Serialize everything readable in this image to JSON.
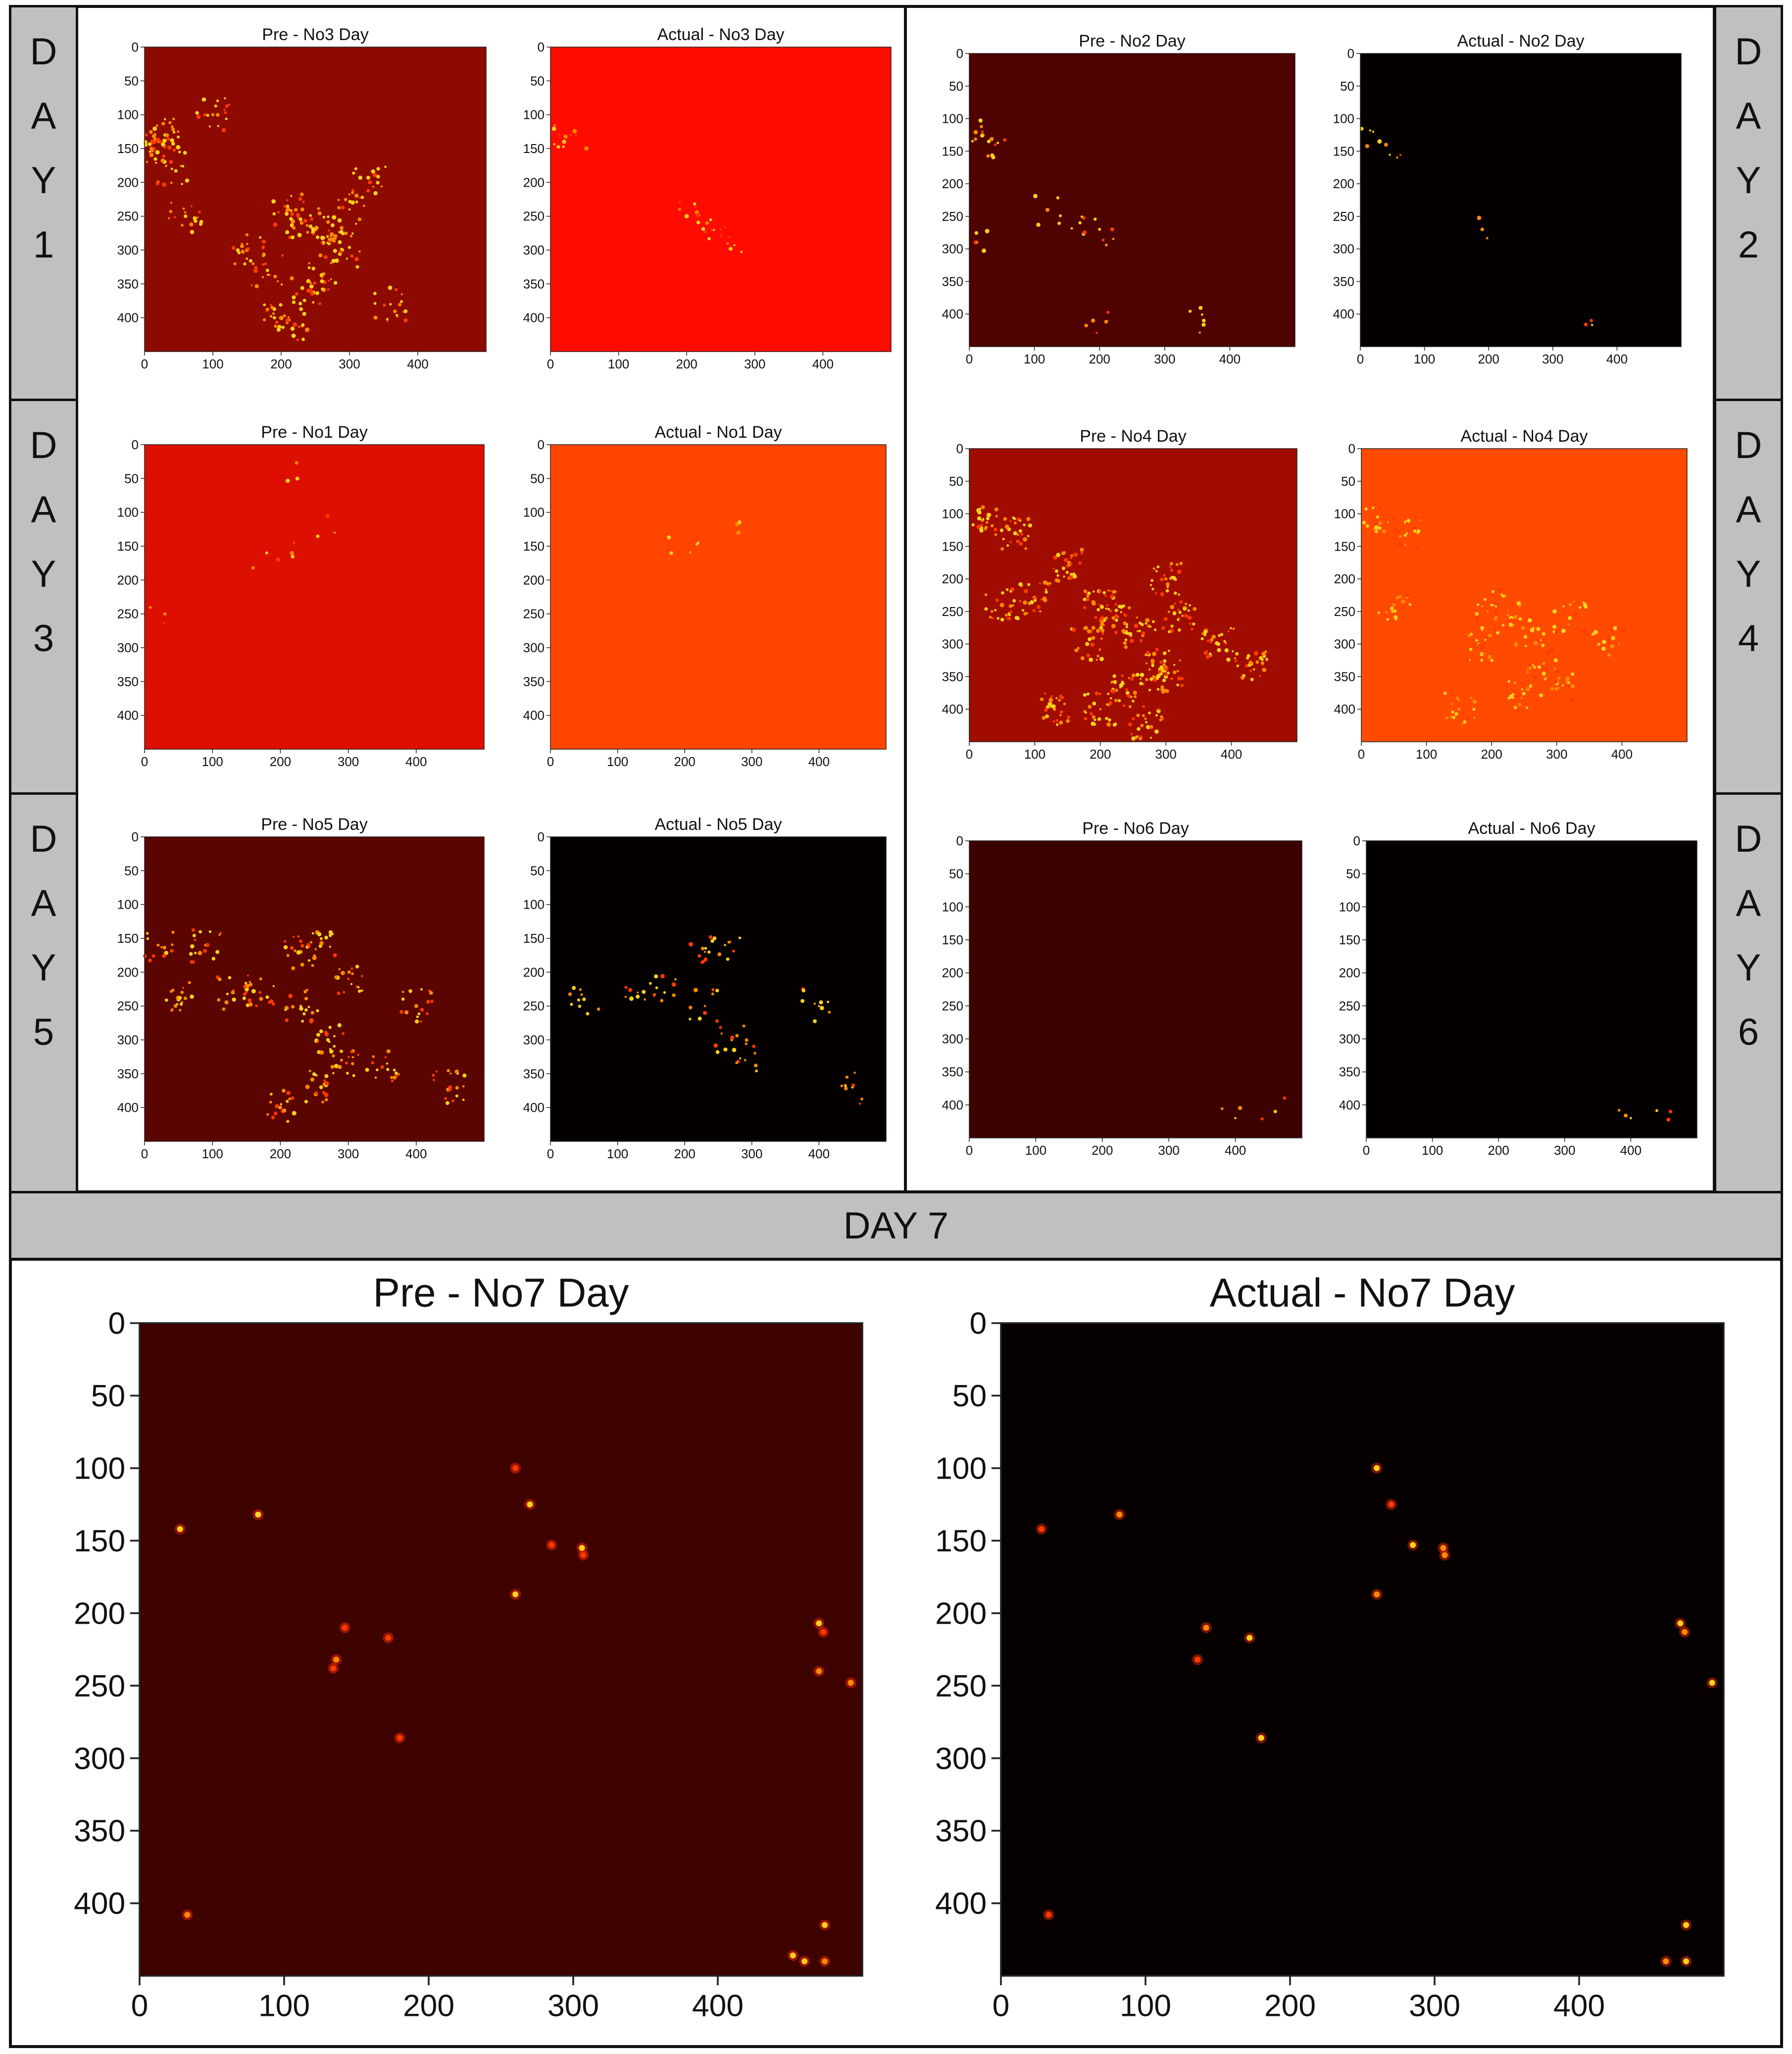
{
  "row_labels": [
    {
      "day": "DAY 1",
      "chars": [
        "D",
        "A",
        "Y",
        "1"
      ]
    },
    {
      "day": "DAY 2",
      "chars": [
        "D",
        "A",
        "Y",
        "2"
      ]
    },
    {
      "day": "DAY 3",
      "chars": [
        "D",
        "A",
        "Y",
        "3"
      ]
    },
    {
      "day": "DAY 4",
      "chars": [
        "D",
        "A",
        "Y",
        "4"
      ]
    },
    {
      "day": "DAY 5",
      "chars": [
        "D",
        "A",
        "Y",
        "5"
      ]
    },
    {
      "day": "DAY 6",
      "chars": [
        "D",
        "A",
        "Y",
        "6"
      ]
    }
  ],
  "day7_label": "DAY 7",
  "chart_data": [
    {
      "type": "heatmap",
      "title": "Pre - No3 Day",
      "x_ticks": [
        0,
        100,
        200,
        300,
        400
      ],
      "y_ticks": [
        0,
        50,
        100,
        150,
        200,
        250,
        300,
        350,
        400
      ],
      "xlim": [
        0,
        500
      ],
      "ylim": [
        450,
        0
      ],
      "colormap": "hot",
      "base_color": "#8c0a00",
      "hotspots": [
        [
          20,
          140
        ],
        [
          10,
          150
        ],
        [
          30,
          130
        ],
        [
          230,
          260
        ],
        [
          250,
          270
        ],
        [
          210,
          240
        ],
        [
          270,
          290
        ],
        [
          190,
          400
        ],
        [
          220,
          410
        ],
        [
          290,
          300
        ],
        [
          260,
          340
        ],
        [
          180,
          330
        ],
        [
          60,
          250
        ],
        [
          100,
          100
        ],
        [
          330,
          200
        ],
        [
          360,
          380
        ],
        [
          150,
          300
        ],
        [
          240,
          360
        ],
        [
          300,
          240
        ],
        [
          40,
          180
        ]
      ],
      "density": "high"
    },
    {
      "type": "heatmap",
      "title": "Actual - No3 Day",
      "x_ticks": [
        0,
        100,
        200,
        300,
        400
      ],
      "y_ticks": [
        0,
        50,
        100,
        150,
        200,
        250,
        300,
        350,
        400
      ],
      "xlim": [
        0,
        500
      ],
      "ylim": [
        450,
        0
      ],
      "colormap": "hot",
      "base_color": "#ff0b00",
      "hotspots": [
        [
          20,
          140
        ],
        [
          230,
          260
        ],
        [
          250,
          270
        ],
        [
          260,
          290
        ],
        [
          200,
          250
        ],
        [
          30,
          130
        ]
      ],
      "density": "low"
    },
    {
      "type": "heatmap",
      "title": "Pre - No2 Day",
      "x_ticks": [
        0,
        100,
        200,
        300,
        400
      ],
      "y_ticks": [
        0,
        50,
        100,
        150,
        200,
        250,
        300,
        350,
        400
      ],
      "xlim": [
        0,
        500
      ],
      "ylim": [
        450,
        0
      ],
      "colormap": "hot",
      "base_color": "#4e0300",
      "hotspots": [
        [
          20,
          120
        ],
        [
          30,
          135
        ],
        [
          40,
          140
        ],
        [
          200,
          270
        ],
        [
          170,
          260
        ],
        [
          360,
          410
        ],
        [
          120,
          240
        ],
        [
          190,
          410
        ],
        [
          10,
          290
        ]
      ],
      "density": "low"
    },
    {
      "type": "heatmap",
      "title": "Actual - No2 Day",
      "x_ticks": [
        0,
        100,
        200,
        300,
        400
      ],
      "y_ticks": [
        0,
        50,
        100,
        150,
        200,
        250,
        300,
        350,
        400
      ],
      "xlim": [
        0,
        500
      ],
      "ylim": [
        450,
        0
      ],
      "colormap": "hot",
      "base_color": "#050000",
      "hotspots": [
        [
          20,
          120
        ],
        [
          30,
          135
        ],
        [
          40,
          140
        ],
        [
          190,
          270
        ],
        [
          360,
          410
        ]
      ],
      "density": "very-low"
    },
    {
      "type": "heatmap",
      "title": "Pre - No1 Day",
      "x_ticks": [
        0,
        100,
        200,
        300,
        400
      ],
      "y_ticks": [
        0,
        50,
        100,
        150,
        200,
        250,
        300,
        350,
        400
      ],
      "xlim": [
        0,
        500
      ],
      "ylim": [
        450,
        0
      ],
      "colormap": "hot",
      "base_color": "#dd0f00",
      "hotspots": [
        [
          220,
          145
        ],
        [
          180,
          160
        ],
        [
          280,
          130
        ],
        [
          225,
          50
        ],
        [
          30,
          250
        ]
      ],
      "density": "very-low"
    },
    {
      "type": "heatmap",
      "title": "Actual - No1 Day",
      "x_ticks": [
        0,
        100,
        200,
        300,
        400
      ],
      "y_ticks": [
        0,
        50,
        100,
        150,
        200,
        250,
        300,
        350,
        400
      ],
      "xlim": [
        0,
        500
      ],
      "ylim": [
        450,
        0
      ],
      "colormap": "hot",
      "base_color": "#ff4500",
      "hotspots": [
        [
          220,
          145
        ],
        [
          180,
          160
        ],
        [
          280,
          130
        ]
      ],
      "density": "very-low"
    },
    {
      "type": "heatmap",
      "title": "Pre - No4 Day",
      "x_ticks": [
        0,
        100,
        200,
        300,
        400
      ],
      "y_ticks": [
        0,
        50,
        100,
        150,
        200,
        250,
        300,
        350,
        400
      ],
      "xlim": [
        0,
        500
      ],
      "ylim": [
        450,
        0
      ],
      "colormap": "hot",
      "base_color": "#a00c00",
      "hotspots": [
        [
          50,
          240
        ],
        [
          200,
          240
        ],
        [
          220,
          260
        ],
        [
          260,
          280
        ],
        [
          280,
          330
        ],
        [
          300,
          350
        ],
        [
          240,
          370
        ],
        [
          180,
          300
        ],
        [
          320,
          260
        ],
        [
          200,
          400
        ],
        [
          130,
          400
        ],
        [
          100,
          230
        ],
        [
          380,
          300
        ],
        [
          430,
          330
        ],
        [
          20,
          110
        ],
        [
          70,
          130
        ],
        [
          300,
          200
        ],
        [
          150,
          180
        ],
        [
          270,
          420
        ]
      ],
      "density": "very-high"
    },
    {
      "type": "heatmap",
      "title": "Actual - No4 Day",
      "x_ticks": [
        0,
        100,
        200,
        300,
        400
      ],
      "y_ticks": [
        0,
        50,
        100,
        150,
        200,
        250,
        300,
        350,
        400
      ],
      "xlim": [
        0,
        500
      ],
      "ylim": [
        450,
        0
      ],
      "colormap": "hot",
      "base_color": "#ff4a00",
      "hotspots": [
        [
          50,
          240
        ],
        [
          200,
          240
        ],
        [
          230,
          260
        ],
        [
          260,
          280
        ],
        [
          280,
          330
        ],
        [
          300,
          360
        ],
        [
          240,
          380
        ],
        [
          180,
          300
        ],
        [
          320,
          260
        ],
        [
          150,
          400
        ],
        [
          380,
          300
        ],
        [
          20,
          110
        ],
        [
          70,
          130
        ]
      ],
      "density": "high"
    },
    {
      "type": "heatmap",
      "title": "Pre - No5 Day",
      "x_ticks": [
        0,
        100,
        200,
        300,
        400
      ],
      "y_ticks": [
        0,
        50,
        100,
        150,
        200,
        250,
        300,
        350,
        400
      ],
      "xlim": [
        0,
        500
      ],
      "ylim": [
        450,
        0
      ],
      "colormap": "hot",
      "base_color": "#5a0500",
      "hotspots": [
        [
          50,
          240
        ],
        [
          130,
          230
        ],
        [
          170,
          230
        ],
        [
          230,
          170
        ],
        [
          260,
          160
        ],
        [
          230,
          250
        ],
        [
          270,
          300
        ],
        [
          290,
          330
        ],
        [
          260,
          370
        ],
        [
          400,
          250
        ],
        [
          450,
          370
        ],
        [
          20,
          160
        ],
        [
          90,
          160
        ],
        [
          350,
          340
        ],
        [
          200,
          400
        ],
        [
          300,
          210
        ]
      ],
      "density": "high"
    },
    {
      "type": "heatmap",
      "title": "Actual - No5 Day",
      "x_ticks": [
        0,
        100,
        200,
        300,
        400
      ],
      "y_ticks": [
        0,
        50,
        100,
        150,
        200,
        250,
        300,
        350,
        400
      ],
      "xlim": [
        0,
        500
      ],
      "ylim": [
        450,
        0
      ],
      "colormap": "hot",
      "base_color": "#050000",
      "hotspots": [
        [
          50,
          240
        ],
        [
          130,
          230
        ],
        [
          170,
          230
        ],
        [
          230,
          170
        ],
        [
          260,
          160
        ],
        [
          230,
          250
        ],
        [
          270,
          300
        ],
        [
          290,
          330
        ],
        [
          400,
          250
        ],
        [
          450,
          370
        ]
      ],
      "density": "medium"
    },
    {
      "type": "heatmap",
      "title": "Pre - No6 Day",
      "x_ticks": [
        0,
        100,
        200,
        300,
        400
      ],
      "y_ticks": [
        0,
        50,
        100,
        150,
        200,
        250,
        300,
        350,
        400
      ],
      "xlim": [
        0,
        500
      ],
      "ylim": [
        450,
        0
      ],
      "colormap": "hot",
      "base_color": "#3c0200",
      "hotspots": [
        [
          400,
          420
        ],
        [
          460,
          410
        ]
      ],
      "density": "very-low"
    },
    {
      "type": "heatmap",
      "title": "Actual - No6 Day",
      "x_ticks": [
        0,
        100,
        200,
        300,
        400
      ],
      "y_ticks": [
        0,
        50,
        100,
        150,
        200,
        250,
        300,
        350,
        400
      ],
      "xlim": [
        0,
        500
      ],
      "ylim": [
        450,
        0
      ],
      "colormap": "hot",
      "base_color": "#050000",
      "hotspots": [
        [
          400,
          420
        ],
        [
          460,
          410
        ]
      ],
      "density": "very-low"
    },
    {
      "type": "heatmap",
      "title": "Pre - No7 Day",
      "x_ticks": [
        0,
        100,
        200,
        300,
        400
      ],
      "y_ticks": [
        0,
        50,
        100,
        150,
        200,
        250,
        300,
        350,
        400
      ],
      "xlim": [
        0,
        500
      ],
      "ylim": [
        450,
        0
      ],
      "colormap": "hot",
      "base_color": "#3e0200",
      "hotspots": [
        [
          28,
          142
        ],
        [
          82,
          132
        ],
        [
          260,
          100
        ],
        [
          270,
          125
        ],
        [
          285,
          153
        ],
        [
          306,
          155
        ],
        [
          307,
          160
        ],
        [
          260,
          187
        ],
        [
          142,
          210
        ],
        [
          172,
          217
        ],
        [
          136,
          232
        ],
        [
          134,
          238
        ],
        [
          180,
          286
        ],
        [
          470,
          207
        ],
        [
          473,
          213
        ],
        [
          470,
          240
        ],
        [
          492,
          248
        ],
        [
          33,
          408
        ],
        [
          474,
          415
        ],
        [
          460,
          440
        ],
        [
          452,
          436
        ],
        [
          474,
          440
        ]
      ],
      "density": "low"
    },
    {
      "type": "heatmap",
      "title": "Actual - No7 Day",
      "x_ticks": [
        0,
        100,
        200,
        300,
        400
      ],
      "y_ticks": [
        0,
        50,
        100,
        150,
        200,
        250,
        300,
        350,
        400
      ],
      "xlim": [
        0,
        500
      ],
      "ylim": [
        450,
        0
      ],
      "colormap": "hot",
      "base_color": "#060000",
      "hotspots": [
        [
          28,
          142
        ],
        [
          82,
          132
        ],
        [
          260,
          100
        ],
        [
          270,
          125
        ],
        [
          285,
          153
        ],
        [
          306,
          155
        ],
        [
          307,
          160
        ],
        [
          260,
          187
        ],
        [
          142,
          210
        ],
        [
          172,
          217
        ],
        [
          136,
          232
        ],
        [
          180,
          286
        ],
        [
          470,
          207
        ],
        [
          473,
          213
        ],
        [
          492,
          248
        ],
        [
          33,
          408
        ],
        [
          474,
          415
        ],
        [
          460,
          440
        ],
        [
          474,
          440
        ]
      ],
      "density": "very-low"
    }
  ]
}
